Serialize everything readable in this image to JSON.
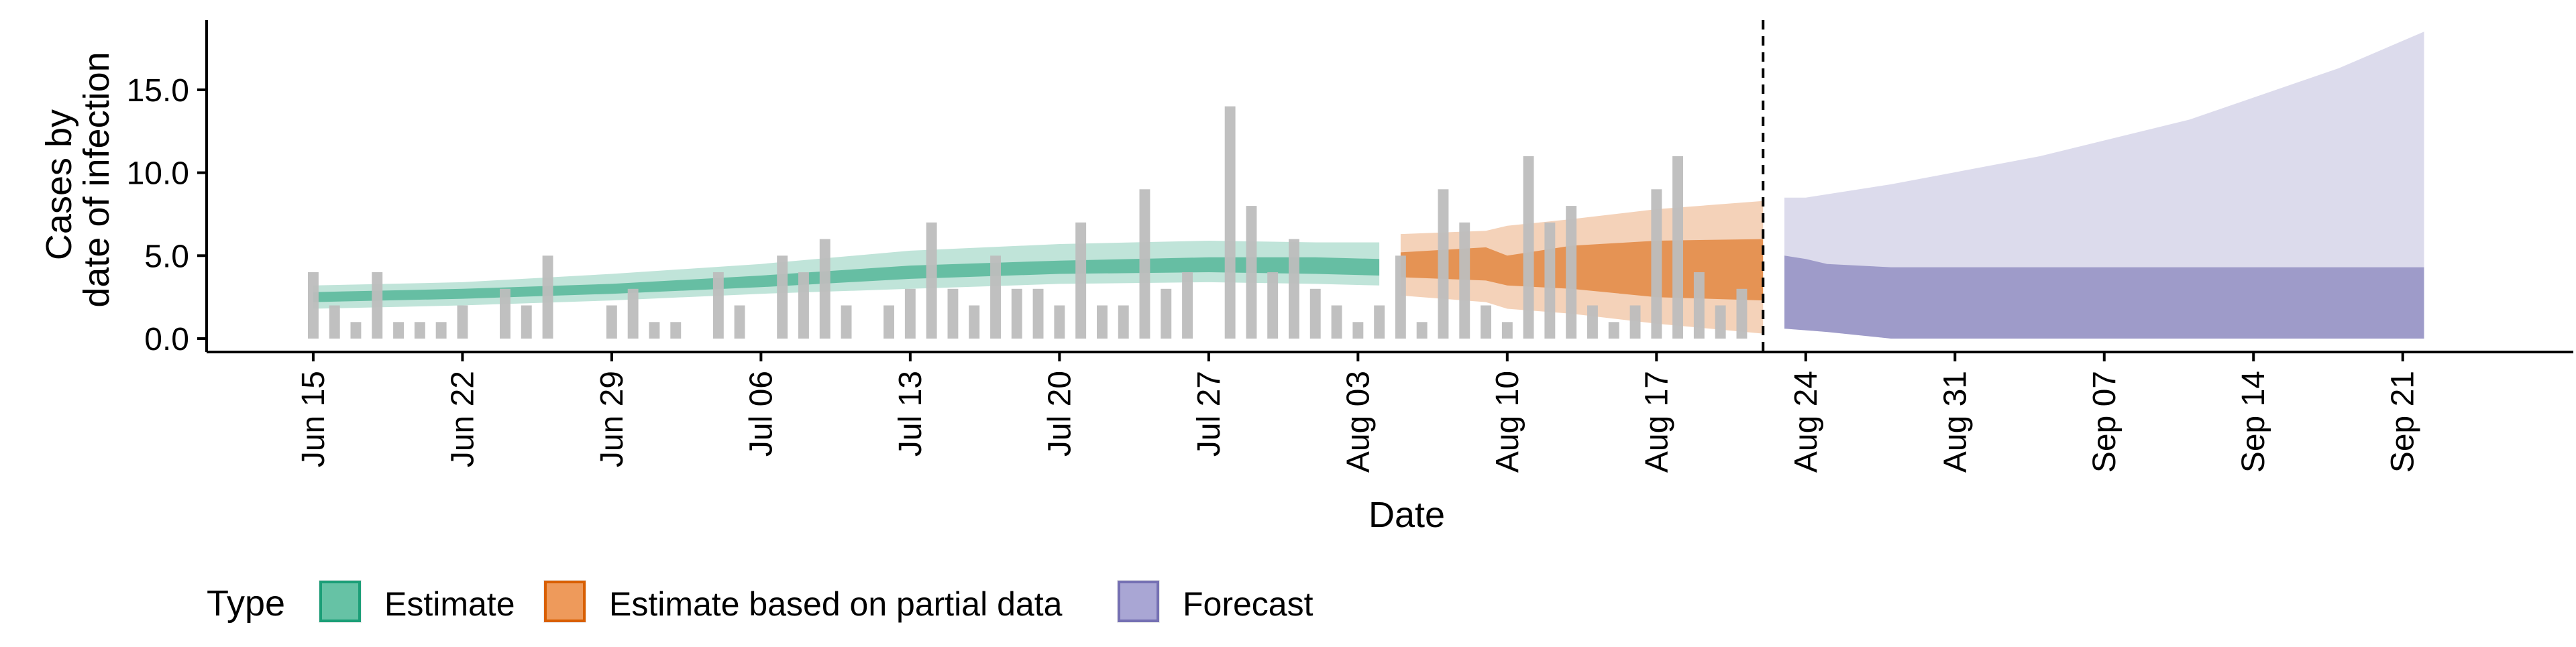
{
  "chart_data": {
    "type": "bar",
    "title": "",
    "xlabel": "Date",
    "ylabel_lines": [
      "Cases by",
      "date of infection"
    ],
    "ylim": [
      0,
      19.2
    ],
    "yticks": [
      0,
      5,
      10,
      15
    ],
    "ytick_labels": [
      "0.0",
      "5.0",
      "10.0",
      "15.0"
    ],
    "xticks": [
      {
        "date": "2020-06-15",
        "label": "Jun 15"
      },
      {
        "date": "2020-06-22",
        "label": "Jun 22"
      },
      {
        "date": "2020-06-29",
        "label": "Jun 29"
      },
      {
        "date": "2020-07-06",
        "label": "Jul 06"
      },
      {
        "date": "2020-07-13",
        "label": "Jul 13"
      },
      {
        "date": "2020-07-20",
        "label": "Jul 20"
      },
      {
        "date": "2020-07-27",
        "label": "Jul 27"
      },
      {
        "date": "2020-08-03",
        "label": "Aug 03"
      },
      {
        "date": "2020-08-10",
        "label": "Aug 10"
      },
      {
        "date": "2020-08-17",
        "label": "Aug 17"
      },
      {
        "date": "2020-08-24",
        "label": "Aug 24"
      },
      {
        "date": "2020-08-31",
        "label": "Aug 31"
      },
      {
        "date": "2020-09-07",
        "label": "Sep 07"
      },
      {
        "date": "2020-09-14",
        "label": "Sep 14"
      },
      {
        "date": "2020-09-21",
        "label": "Sep 21"
      }
    ],
    "xlim": [
      "2020-06-10",
      "2020-09-29"
    ],
    "reference_line_date": "2020-08-22",
    "grid": false,
    "legend": {
      "title": "Type",
      "position": "bottom",
      "items": [
        {
          "label": "Estimate",
          "fill": "#66c2a5",
          "stroke": "#1b9e77"
        },
        {
          "label": "Estimate based on partial data",
          "fill": "#ee9a5b",
          "stroke": "#d95f02"
        },
        {
          "label": "Forecast",
          "fill": "#a9a6d4",
          "stroke": "#7570b3"
        }
      ]
    },
    "bar_color": "#bdbdbd",
    "bars": {
      "start": "2020-06-15",
      "values": [
        4,
        2,
        1,
        4,
        1,
        1,
        1,
        2,
        0,
        3,
        2,
        5,
        0,
        0,
        2,
        3,
        1,
        1,
        0,
        4,
        2,
        0,
        5,
        4,
        6,
        2,
        0,
        2,
        3,
        7,
        3,
        2,
        5,
        3,
        3,
        2,
        7,
        2,
        2,
        9,
        3,
        4,
        0,
        14,
        8,
        4,
        6,
        3,
        2,
        1,
        2,
        5,
        1,
        9,
        7,
        2,
        1,
        11,
        7,
        8,
        2,
        1,
        2,
        9,
        11,
        4,
        2,
        3
      ]
    },
    "series": [
      {
        "name": "Estimate",
        "color": "#1b9e77",
        "outer_alpha": 0.28,
        "inner_alpha": 0.55,
        "points": [
          {
            "date": "2020-06-15",
            "lo90": 1.8,
            "lo50": 2.2,
            "hi50": 2.8,
            "hi90": 3.2
          },
          {
            "date": "2020-06-22",
            "lo90": 2.0,
            "lo50": 2.4,
            "hi50": 3.0,
            "hi90": 3.4
          },
          {
            "date": "2020-06-29",
            "lo90": 2.3,
            "lo50": 2.7,
            "hi50": 3.3,
            "hi90": 3.9
          },
          {
            "date": "2020-07-06",
            "lo90": 2.7,
            "lo50": 3.1,
            "hi50": 3.8,
            "hi90": 4.5
          },
          {
            "date": "2020-07-13",
            "lo90": 3.0,
            "lo50": 3.6,
            "hi50": 4.4,
            "hi90": 5.3
          },
          {
            "date": "2020-07-20",
            "lo90": 3.3,
            "lo50": 3.9,
            "hi50": 4.7,
            "hi90": 5.7
          },
          {
            "date": "2020-07-27",
            "lo90": 3.4,
            "lo50": 4.0,
            "hi50": 4.9,
            "hi90": 5.9
          },
          {
            "date": "2020-08-01",
            "lo90": 3.3,
            "lo50": 3.9,
            "hi50": 4.9,
            "hi90": 5.8
          },
          {
            "date": "2020-08-04",
            "lo90": 3.2,
            "lo50": 3.8,
            "hi50": 4.8,
            "hi90": 5.8
          }
        ]
      },
      {
        "name": "Estimate based on partial data",
        "color": "#d95f02",
        "outer_alpha": 0.28,
        "inner_alpha": 0.55,
        "points": [
          {
            "date": "2020-08-05",
            "lo90": 2.6,
            "lo50": 3.7,
            "hi50": 5.2,
            "hi90": 6.3
          },
          {
            "date": "2020-08-09",
            "lo90": 2.2,
            "lo50": 3.5,
            "hi50": 5.5,
            "hi90": 6.5
          },
          {
            "date": "2020-08-10",
            "lo90": 1.8,
            "lo50": 3.2,
            "hi50": 5.0,
            "hi90": 6.8
          },
          {
            "date": "2020-08-13",
            "lo90": 1.5,
            "lo50": 3.0,
            "hi50": 5.6,
            "hi90": 7.2
          },
          {
            "date": "2020-08-17",
            "lo90": 0.9,
            "lo50": 2.5,
            "hi50": 5.9,
            "hi90": 7.8
          },
          {
            "date": "2020-08-22",
            "lo90": 0.3,
            "lo50": 2.3,
            "hi50": 6.0,
            "hi90": 8.3
          }
        ]
      },
      {
        "name": "Forecast",
        "color": "#7570b3",
        "outer_alpha": 0.25,
        "inner_alpha": 0.6,
        "points": [
          {
            "date": "2020-08-23",
            "lo90": 0.6,
            "lo50": 0.6,
            "hi50": 5.0,
            "hi90": 8.5
          },
          {
            "date": "2020-08-24",
            "lo90": 0.5,
            "lo50": 0.5,
            "hi50": 4.8,
            "hi90": 8.5
          },
          {
            "date": "2020-08-25",
            "lo90": 0.4,
            "lo50": 0.4,
            "hi50": 4.5,
            "hi90": 8.7
          },
          {
            "date": "2020-08-28",
            "lo90": 0.0,
            "lo50": 0.0,
            "hi50": 4.3,
            "hi90": 9.3
          },
          {
            "date": "2020-09-04",
            "lo90": 0.0,
            "lo50": 0.0,
            "hi50": 4.3,
            "hi90": 11.0
          },
          {
            "date": "2020-09-11",
            "lo90": 0.0,
            "lo50": 0.0,
            "hi50": 4.3,
            "hi90": 13.2
          },
          {
            "date": "2020-09-18",
            "lo90": 0.0,
            "lo50": 0.0,
            "hi50": 4.3,
            "hi90": 16.3
          },
          {
            "date": "2020-09-22",
            "lo90": 0.0,
            "lo50": 0.0,
            "hi50": 4.3,
            "hi90": 18.5
          }
        ]
      }
    ]
  }
}
